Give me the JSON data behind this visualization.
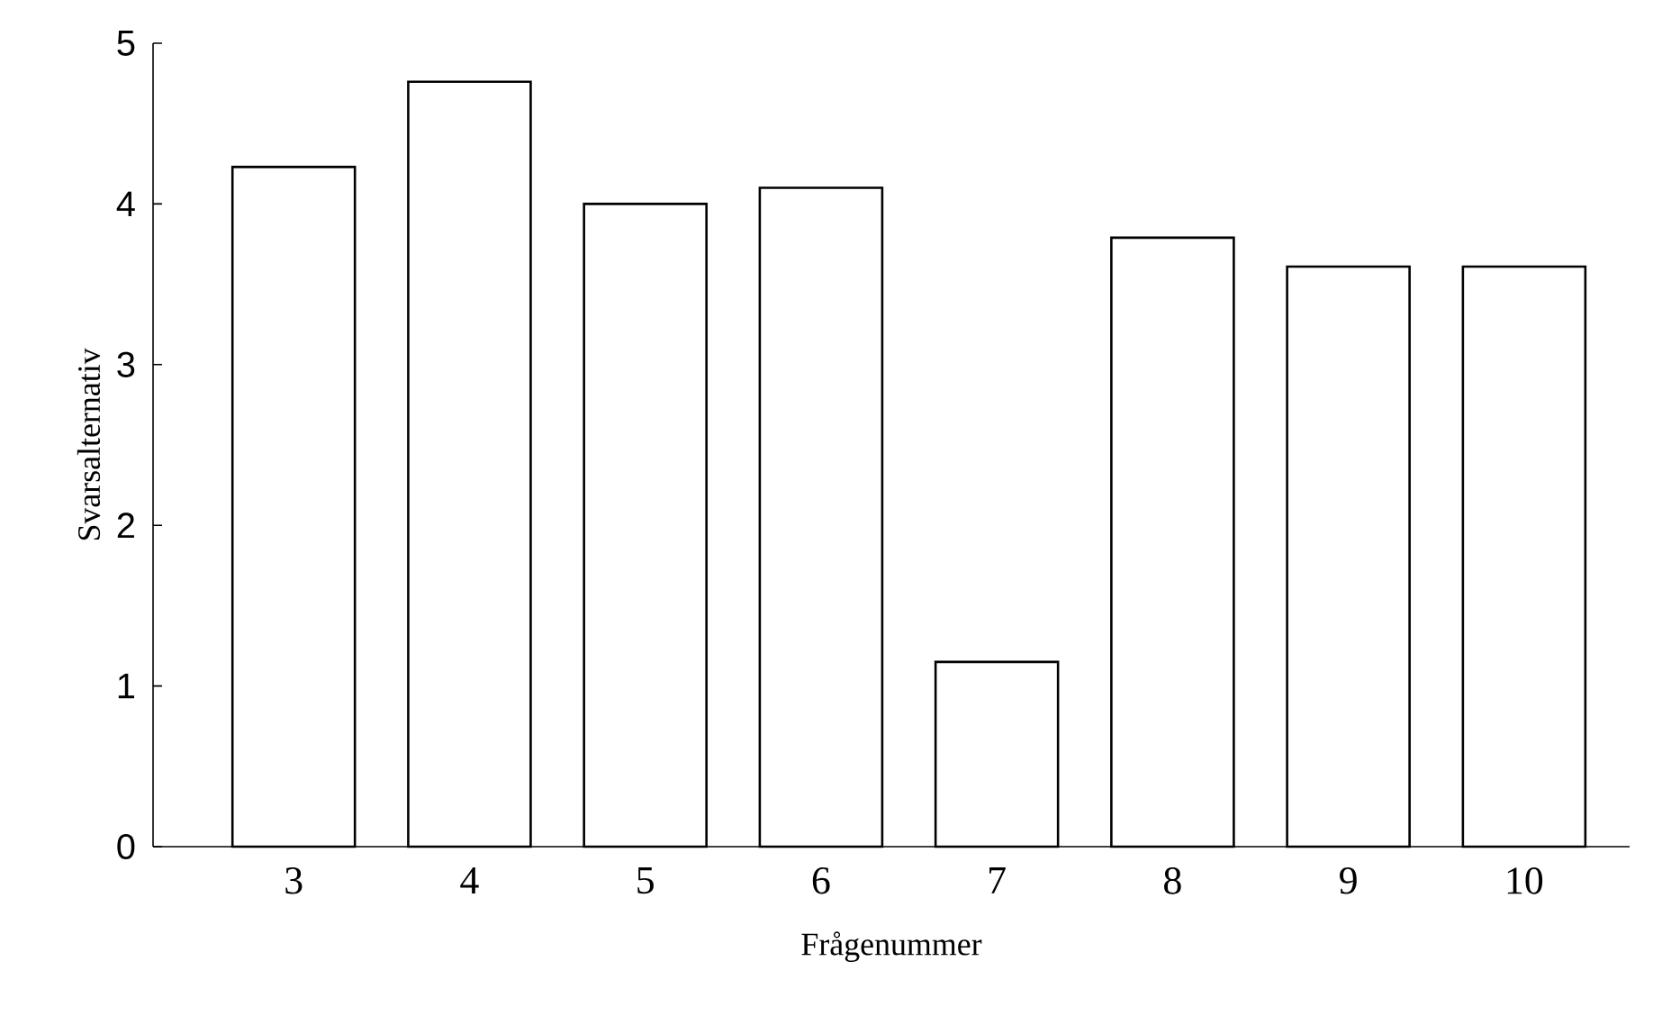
{
  "chart_data": {
    "type": "bar",
    "xlabel": "Frågenummer",
    "ylabel": "Svarsalternativ",
    "categories": [
      "3",
      "4",
      "5",
      "6",
      "7",
      "8",
      "9",
      "10"
    ],
    "values": [
      4.23,
      4.76,
      4.0,
      4.1,
      1.15,
      3.79,
      3.61,
      3.61
    ],
    "color": "#ffffff",
    "ylim": [
      0,
      5
    ],
    "yticks": [
      0,
      1,
      2,
      3,
      4,
      5
    ]
  }
}
